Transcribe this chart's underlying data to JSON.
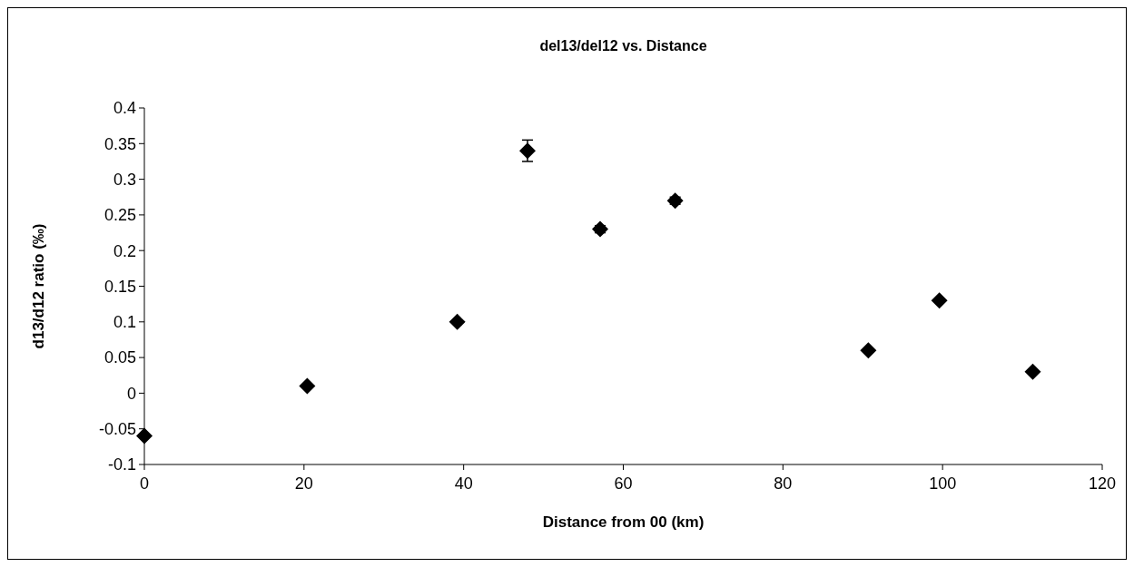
{
  "chart_data": {
    "type": "scatter",
    "title": "del13/del12 vs. Distance",
    "xlabel": "Distance from 00 (km)",
    "ylabel": "d13/d12 ratio (‰)",
    "x": [
      0,
      20.4,
      39.2,
      48,
      57.1,
      66.5,
      90.7,
      99.6,
      111.3
    ],
    "series": [
      {
        "color": "#000000",
        "values": [
          -0.06,
          0.01,
          0.1,
          0.34,
          0.23,
          0.27,
          0.06,
          0.13,
          0.03
        ],
        "errors": [
          null,
          null,
          null,
          0.015,
          0.005,
          0.005,
          null,
          null,
          null
        ]
      }
    ],
    "xlim": [
      0,
      120
    ],
    "xticks": [
      0,
      20,
      40,
      60,
      80,
      100,
      120
    ],
    "ylim": [
      -0.1,
      0.4
    ],
    "yticks": [
      -0.1,
      -0.05,
      0,
      0.05,
      0.1,
      0.15,
      0.2,
      0.25,
      0.3,
      0.35,
      0.4
    ],
    "marker": "diamond",
    "grid": false
  }
}
